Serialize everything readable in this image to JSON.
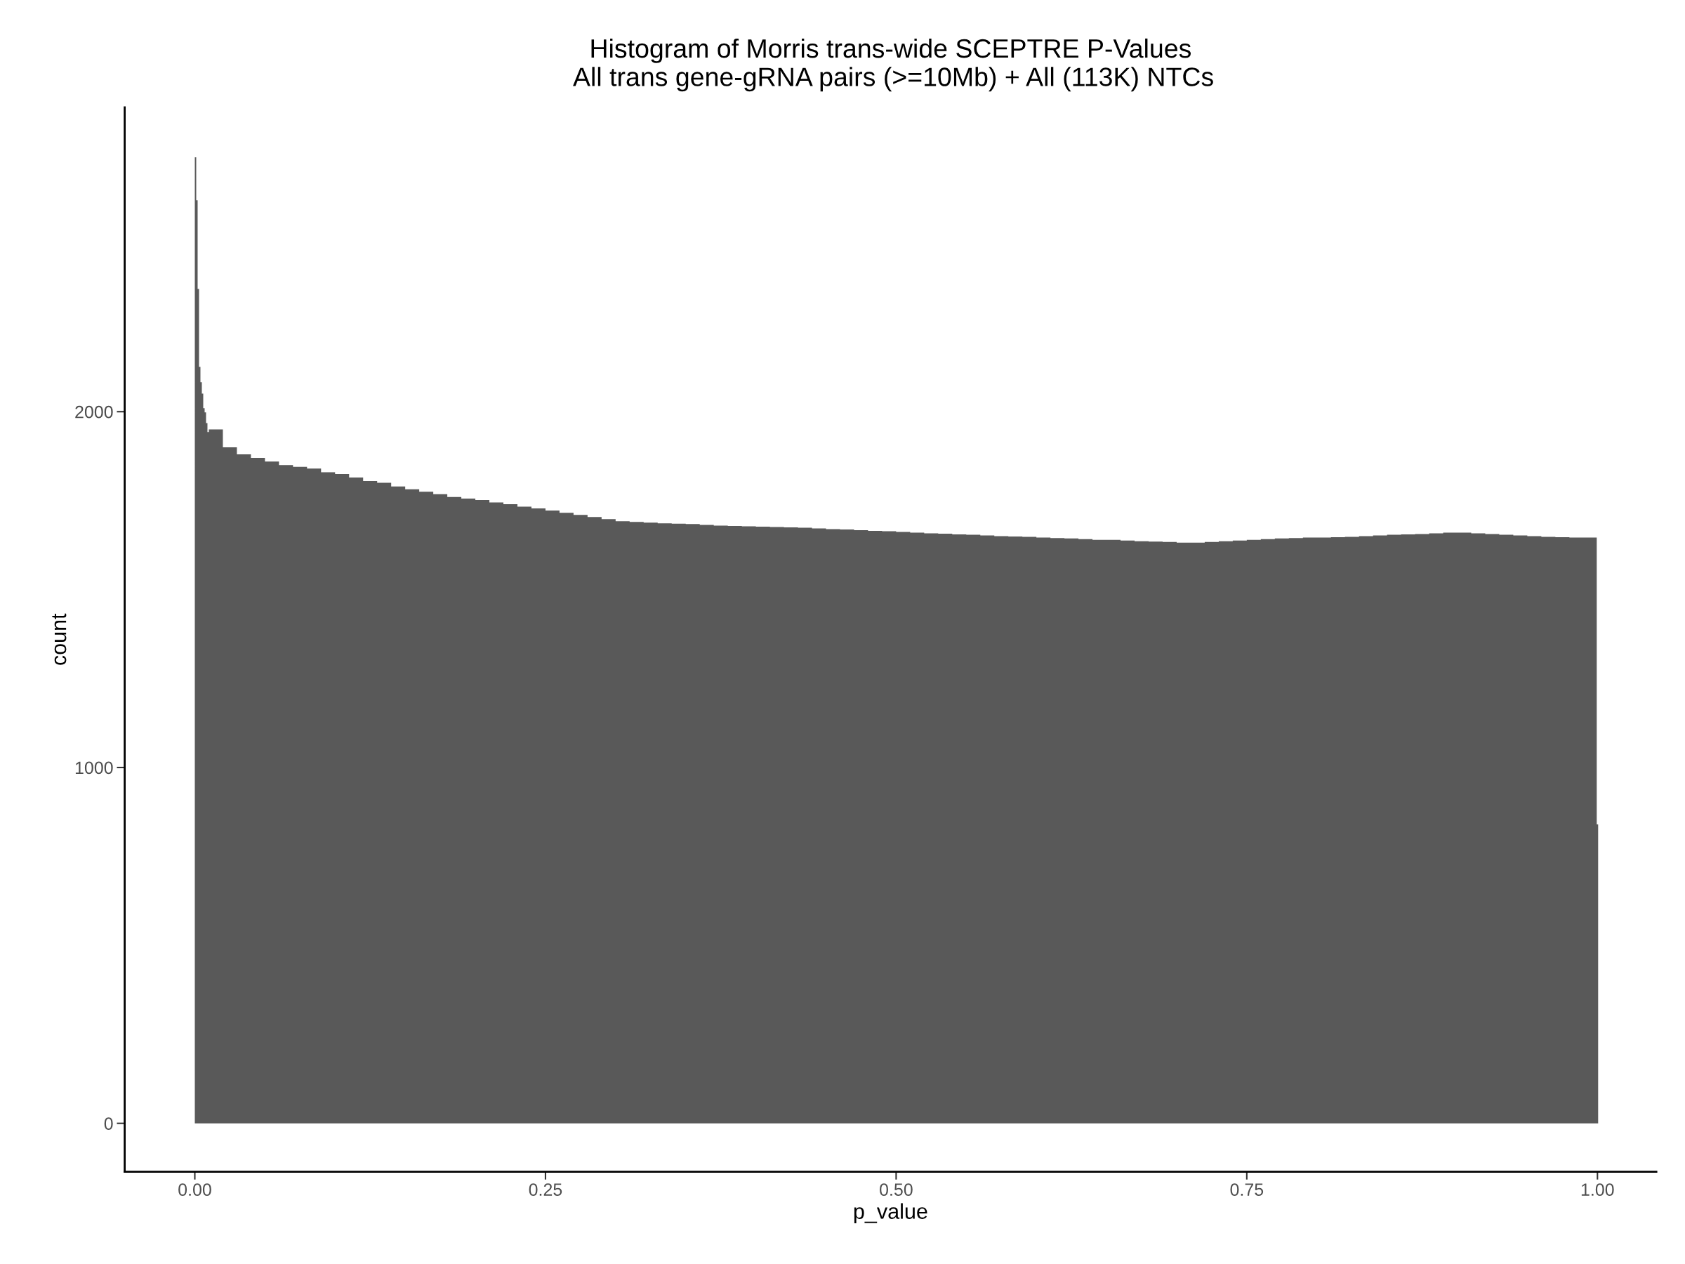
{
  "chart_data": {
    "type": "histogram",
    "title": "Histogram of Morris trans-wide SCEPTRE P-Values\n All trans gene-gRNA pairs (>=10Mb) + All (113K) NTCs",
    "xlabel": "p_value",
    "ylabel": "count",
    "color": "#595959",
    "bins": [
      0,
      0.001,
      0.002,
      0.003,
      0.004,
      0.005,
      0.006,
      0.007,
      0.008,
      0.009,
      0.01,
      0.02,
      0.03,
      0.04,
      0.05,
      0.06,
      0.07,
      0.08,
      0.09,
      0.1,
      0.11,
      0.12,
      0.13,
      0.14,
      0.15,
      0.16,
      0.17,
      0.18,
      0.19,
      0.2,
      0.21,
      0.22,
      0.23,
      0.24,
      0.25,
      0.26,
      0.27,
      0.28,
      0.29,
      0.3,
      0.31,
      0.32,
      0.33,
      0.34,
      0.35,
      0.36,
      0.37,
      0.38,
      0.39,
      0.4,
      0.41,
      0.42,
      0.43,
      0.44,
      0.45,
      0.46,
      0.47,
      0.48,
      0.49,
      0.5,
      0.51,
      0.52,
      0.53,
      0.54,
      0.55,
      0.56,
      0.57,
      0.58,
      0.59,
      0.6,
      0.61,
      0.62,
      0.63,
      0.64,
      0.65,
      0.66,
      0.67,
      0.68,
      0.69,
      0.7,
      0.71,
      0.72,
      0.73,
      0.74,
      0.75,
      0.76,
      0.77,
      0.78,
      0.79,
      0.8,
      0.81,
      0.82,
      0.83,
      0.84,
      0.85,
      0.86,
      0.87,
      0.88,
      0.89,
      0.9,
      0.91,
      0.92,
      0.93,
      0.94,
      0.95,
      0.96,
      0.97,
      0.98,
      0.99,
      0.9995,
      1.0005
    ],
    "values": [
      2715,
      2594,
      2345,
      2126,
      2083,
      2051,
      2010,
      1998,
      1968,
      1943,
      1950,
      1900,
      1880,
      1870,
      1860,
      1850,
      1845,
      1840,
      1830,
      1825,
      1815,
      1805,
      1800,
      1790,
      1782,
      1775,
      1768,
      1760,
      1756,
      1752,
      1745,
      1740,
      1733,
      1728,
      1722,
      1716,
      1710,
      1704,
      1698,
      1692,
      1690,
      1688,
      1686,
      1685,
      1684,
      1682,
      1680,
      1679,
      1678,
      1677,
      1676,
      1675,
      1674,
      1672,
      1670,
      1669,
      1667,
      1665,
      1664,
      1662,
      1660,
      1658,
      1657,
      1655,
      1654,
      1652,
      1650,
      1649,
      1648,
      1646,
      1645,
      1644,
      1642,
      1640,
      1640,
      1638,
      1636,
      1635,
      1634,
      1632,
      1632,
      1634,
      1636,
      1638,
      1640,
      1642,
      1644,
      1645,
      1646,
      1646,
      1647,
      1648,
      1650,
      1652,
      1654,
      1655,
      1656,
      1658,
      1660,
      1660,
      1658,
      1656,
      1654,
      1652,
      1650,
      1648,
      1647,
      1646,
      1646,
      840
    ],
    "xlim": [
      -0.05,
      1.042
    ],
    "ylim": [
      -136,
      2855
    ],
    "xticks": [
      {
        "value": 0,
        "label": "0.00"
      },
      {
        "value": 0.25,
        "label": "0.25"
      },
      {
        "value": 0.5,
        "label": "0.50"
      },
      {
        "value": 0.75,
        "label": "0.75"
      },
      {
        "value": 1,
        "label": "1.00"
      }
    ],
    "yticks": [
      0,
      1000,
      2000
    ],
    "grid": false,
    "legend": false
  }
}
